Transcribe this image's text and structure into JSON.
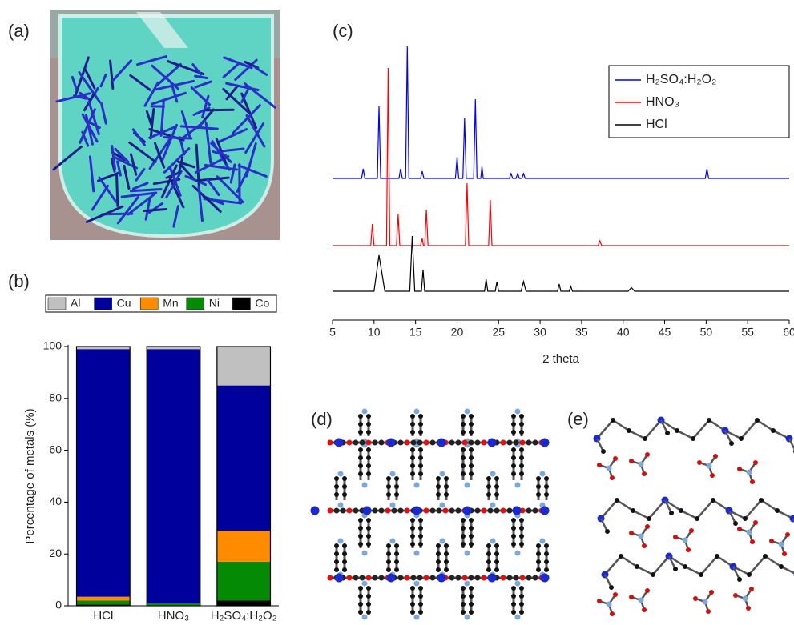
{
  "panels": [
    "(a)",
    "(b)",
    "(c)",
    "(d)",
    "(e)"
  ],
  "chart_data": [
    {
      "type": "bar",
      "stacked": true,
      "ylabel": "Percentage of metals (%)",
      "categories": [
        "HCl",
        "HNO₃",
        "H₂SO₄:H₂O₂"
      ],
      "ylim": [
        0,
        100
      ],
      "yticks": [
        0,
        20,
        40,
        60,
        80,
        100
      ],
      "series": [
        {
          "name": "Co",
          "color": "#000000",
          "values": [
            0.5,
            0.2,
            2
          ]
        },
        {
          "name": "Ni",
          "color": "#058a05",
          "values": [
            1.5,
            0.8,
            15
          ]
        },
        {
          "name": "Mn",
          "color": "#ff8c00",
          "values": [
            1.5,
            0,
            12
          ]
        },
        {
          "name": "Cu",
          "color": "#00009c",
          "values": [
            95.5,
            98,
            56
          ]
        },
        {
          "name": "Al",
          "color": "#c0c0c0",
          "values": [
            1,
            1,
            15
          ]
        }
      ]
    },
    {
      "type": "line",
      "xlabel": "2 theta",
      "xlim": [
        5,
        60
      ],
      "xticks": [
        5,
        10,
        15,
        20,
        25,
        30,
        35,
        40,
        45,
        50,
        55,
        60
      ],
      "ylim": [
        -12,
        108
      ],
      "series": [
        {
          "name": "H₂SO₄:H₂O₂",
          "color": "#0000ff",
          "x": [
            5,
            8.5,
            8.7,
            8.9,
            10.4,
            10.6,
            10.8,
            13.0,
            13.2,
            13.4,
            13.8,
            14.0,
            14.2,
            15.6,
            15.8,
            16.0,
            19.8,
            20.0,
            20.2,
            20.7,
            20.9,
            21.1,
            22.0,
            22.2,
            22.4,
            22.85,
            23.0,
            23.15,
            26.3,
            26.5,
            26.7,
            27.1,
            27.3,
            27.5,
            27.8,
            28.0,
            28.2,
            49.9,
            50.1,
            50.3,
            60
          ],
          "values": [
            47,
            47,
            51,
            47,
            47,
            77,
            47,
            47,
            51,
            47,
            47,
            102,
            47,
            47,
            50,
            47,
            47,
            56,
            47,
            47,
            72,
            47,
            47,
            80,
            47,
            47,
            52,
            47,
            47,
            49,
            47,
            47,
            49,
            47,
            47,
            49,
            47,
            47,
            51,
            47,
            47
          ]
        },
        {
          "name": "HNO₃",
          "color": "#ff0000",
          "x": [
            5,
            9.6,
            9.8,
            10.0,
            11.5,
            11.7,
            11.9,
            12.7,
            12.9,
            13.1,
            15.6,
            15.8,
            15.95,
            16.1,
            16.3,
            16.5,
            21.0,
            21.2,
            21.4,
            23.8,
            24.0,
            24.2,
            37.0,
            37.2,
            37.4,
            60
          ],
          "values": [
            19,
            19,
            28,
            19,
            19,
            93,
            19,
            19,
            32,
            19,
            19,
            22,
            19,
            19,
            34,
            19,
            19,
            45,
            19,
            19,
            38,
            19,
            19,
            21,
            19,
            19
          ]
        },
        {
          "name": "HCl",
          "color": "#000000",
          "x": [
            5,
            10.0,
            10.6,
            11.3,
            14.3,
            14.6,
            14.9,
            15.7,
            15.9,
            16.1,
            23.3,
            23.5,
            23.7,
            24.6,
            24.8,
            25.0,
            27.7,
            28.0,
            28.3,
            32.1,
            32.3,
            32.5,
            33.5,
            33.7,
            33.9,
            40.6,
            41.0,
            41.4,
            60
          ],
          "values": [
            0,
            0,
            15,
            0,
            0,
            23,
            0,
            0,
            9,
            0,
            0,
            5,
            0,
            0,
            4,
            0,
            0,
            4,
            0,
            0,
            3,
            0,
            0,
            2,
            0,
            0,
            1.5,
            0,
            0
          ]
        }
      ]
    }
  ]
}
